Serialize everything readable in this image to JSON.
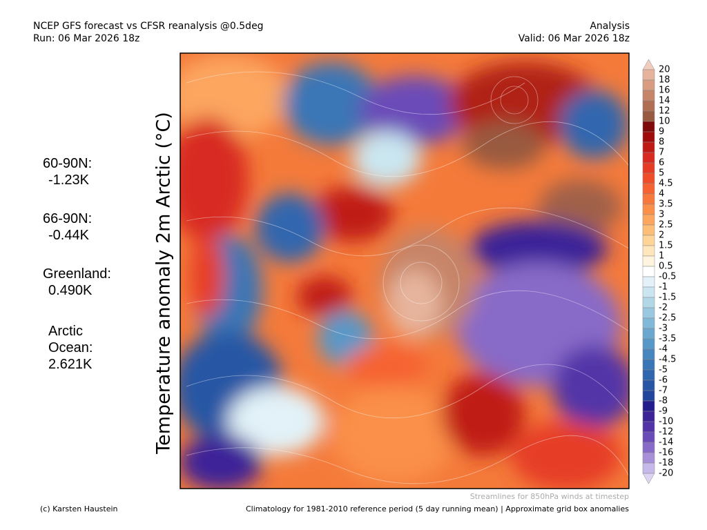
{
  "header": {
    "title": "NCEP GFS forecast vs CFSR reanalysis @0.5deg",
    "run": "Run: 06 Mar 2026 18z",
    "mode": "Analysis",
    "valid": "Valid: 06 Mar 2026 18z"
  },
  "axis_label": "Temperature anomaly 2m Arctic (°C)",
  "stats": [
    {
      "label": "60-90N:",
      "value": "-1.23K"
    },
    {
      "label": "66-90N:",
      "value": "-0.44K"
    },
    {
      "label": "Greenland:",
      "value": "0.490K"
    },
    {
      "label": "Arctic Ocean:",
      "value": "2.621K"
    }
  ],
  "colorbar": {
    "labels": [
      "20",
      "18",
      "16",
      "14",
      "12",
      "10",
      "9",
      "8",
      "7",
      "6",
      "5",
      "4.5",
      "4",
      "3.5",
      "3",
      "2.5",
      "2",
      "1.5",
      "1",
      "0.5",
      "-0.5",
      "-1",
      "-1.5",
      "-2",
      "-2.5",
      "-3",
      "-3.5",
      "-4",
      "-4.5",
      "-5",
      "-6",
      "-7",
      "-8",
      "-9",
      "-10",
      "-12",
      "-14",
      "-16",
      "-18",
      "-20"
    ],
    "colors": [
      "#f2cdbd",
      "#e6b49c",
      "#d89c80",
      "#c68468",
      "#b06e52",
      "#985a40",
      "#7e0a0a",
      "#a00c0c",
      "#c01a16",
      "#d82a20",
      "#e63c26",
      "#f04e2a",
      "#f66232",
      "#f8783c",
      "#fa904a",
      "#fca660",
      "#fdbe78",
      "#fed498",
      "#ffe6bc",
      "#fff4de",
      "#ffffff",
      "#e2f2f8",
      "#cae6f0",
      "#b2d8e8",
      "#9ac8e0",
      "#82b8d8",
      "#6aa8d0",
      "#5898c8",
      "#4886c0",
      "#3a76b6",
      "#3066ae",
      "#2856a4",
      "#22469c",
      "#221c8c",
      "#3c2498",
      "#5234a8",
      "#6a4cb8",
      "#886ac8",
      "#a890d8",
      "#c6b8e8",
      "#dcd4f2"
    ]
  },
  "footer": {
    "credit": "(c) Karsten Haustein",
    "streamlines": "Streamlines for 850hPa winds at timestep",
    "climatology": "Climatology for 1981-2010 reference period (5 day running mean) | Approximate grid box anomalies"
  }
}
